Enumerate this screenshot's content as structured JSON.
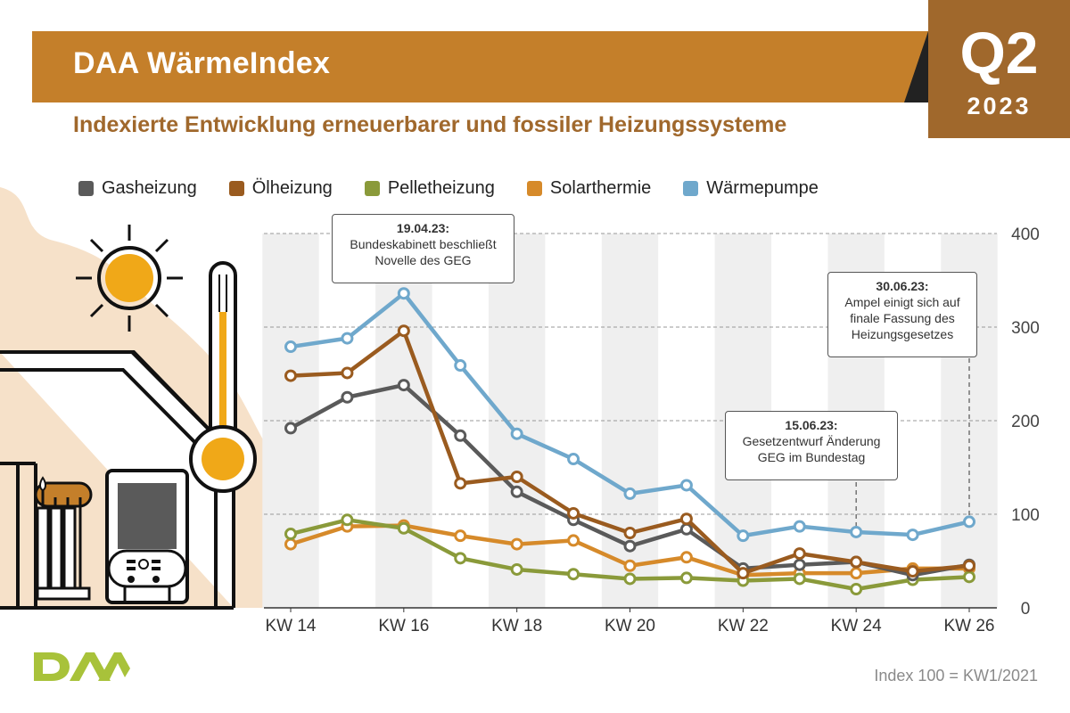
{
  "header": {
    "title": "DAA WärmeIndex",
    "quarter": "Q2",
    "year": "2023",
    "subtitle": "Indexierte Entwicklung erneuerbarer und fossiler Heizungssysteme"
  },
  "chart_data": {
    "type": "line",
    "title": "DAA WärmeIndex",
    "subtitle": "Indexierte Entwicklung erneuerbarer und fossiler Heizungssysteme",
    "xlabel": "",
    "ylabel": "",
    "x": [
      14,
      15,
      16,
      17,
      18,
      19,
      20,
      21,
      22,
      23,
      24,
      25,
      26
    ],
    "x_tick_labels": [
      "KW 14",
      "KW 16",
      "KW 18",
      "KW 20",
      "KW 22",
      "KW 24",
      "KW 26"
    ],
    "x_tick_values": [
      14,
      16,
      18,
      20,
      22,
      24,
      26
    ],
    "ylim": [
      0,
      400
    ],
    "y_ticks": [
      0,
      100,
      200,
      300,
      400
    ],
    "y_axis_side": "right",
    "grid": true,
    "legend_position": "top",
    "series": [
      {
        "name": "Gasheizung",
        "color": "#5a5a5a",
        "values": [
          192,
          225,
          238,
          184,
          124,
          94,
          66,
          84,
          42,
          46,
          49,
          35,
          46
        ]
      },
      {
        "name": "Ölheizung",
        "color": "#9a5b1f",
        "values": [
          248,
          251,
          296,
          133,
          140,
          101,
          80,
          95,
          37,
          58,
          49,
          39,
          45
        ]
      },
      {
        "name": "Pelletheizung",
        "color": "#8a9a3a",
        "values": [
          79,
          94,
          85,
          53,
          41,
          36,
          31,
          32,
          29,
          31,
          20,
          30,
          33
        ]
      },
      {
        "name": "Solarthermie",
        "color": "#d68a2a",
        "values": [
          68,
          87,
          88,
          77,
          68,
          72,
          45,
          54,
          35,
          37,
          37,
          42,
          42
        ]
      },
      {
        "name": "Wärmepumpe",
        "color": "#6fa8cc",
        "values": [
          279,
          288,
          336,
          259,
          186,
          159,
          122,
          131,
          77,
          87,
          81,
          78,
          92
        ]
      }
    ],
    "annotations": [
      {
        "date": "19.04.23:",
        "text": [
          "Bundeskabinett beschließt",
          "Novelle des GEG"
        ],
        "x": 16
      },
      {
        "date": "15.06.23:",
        "text": [
          "Gesetzentwurf Änderung",
          "GEG im Bundestag"
        ],
        "x": 24
      },
      {
        "date": "30.06.23:",
        "text": [
          "Ampel einigt sich auf",
          "finale Fassung des",
          "Heizungsgesetzes"
        ],
        "x": 26
      }
    ]
  },
  "footnote": "Index 100 = KW1/2021",
  "logo_text": "DAA",
  "icons": [
    "sun-icon",
    "house-icon",
    "thermometer-icon",
    "boiler-icon",
    "solar-tank-icon"
  ]
}
